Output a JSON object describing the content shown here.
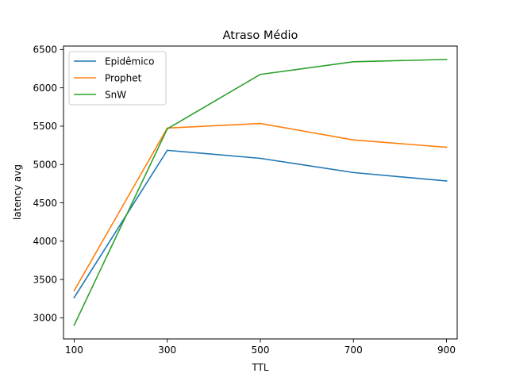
{
  "chart_data": {
    "type": "line",
    "title": "Atraso Médio",
    "xlabel": "TTL",
    "ylabel": "latency avg",
    "x": [
      100,
      300,
      500,
      700,
      900
    ],
    "xticks": [
      100,
      300,
      500,
      700,
      900
    ],
    "yticks": [
      3000,
      3500,
      4000,
      4500,
      5000,
      5500,
      6000,
      6500
    ],
    "xlim": [
      77,
      923
    ],
    "ylim": [
      2725,
      6545
    ],
    "grid": false,
    "legend_position": "top-left",
    "series": [
      {
        "name": "Epidêmico",
        "color": "#1f77b4",
        "values": [
          3265,
          5185,
          5080,
          4895,
          4785
        ]
      },
      {
        "name": "Prophet",
        "color": "#ff7f0e",
        "values": [
          3355,
          5475,
          5535,
          5320,
          5225
        ]
      },
      {
        "name": "SnW",
        "color": "#2ca02c",
        "values": [
          2905,
          5465,
          6175,
          6340,
          6370
        ]
      }
    ]
  }
}
